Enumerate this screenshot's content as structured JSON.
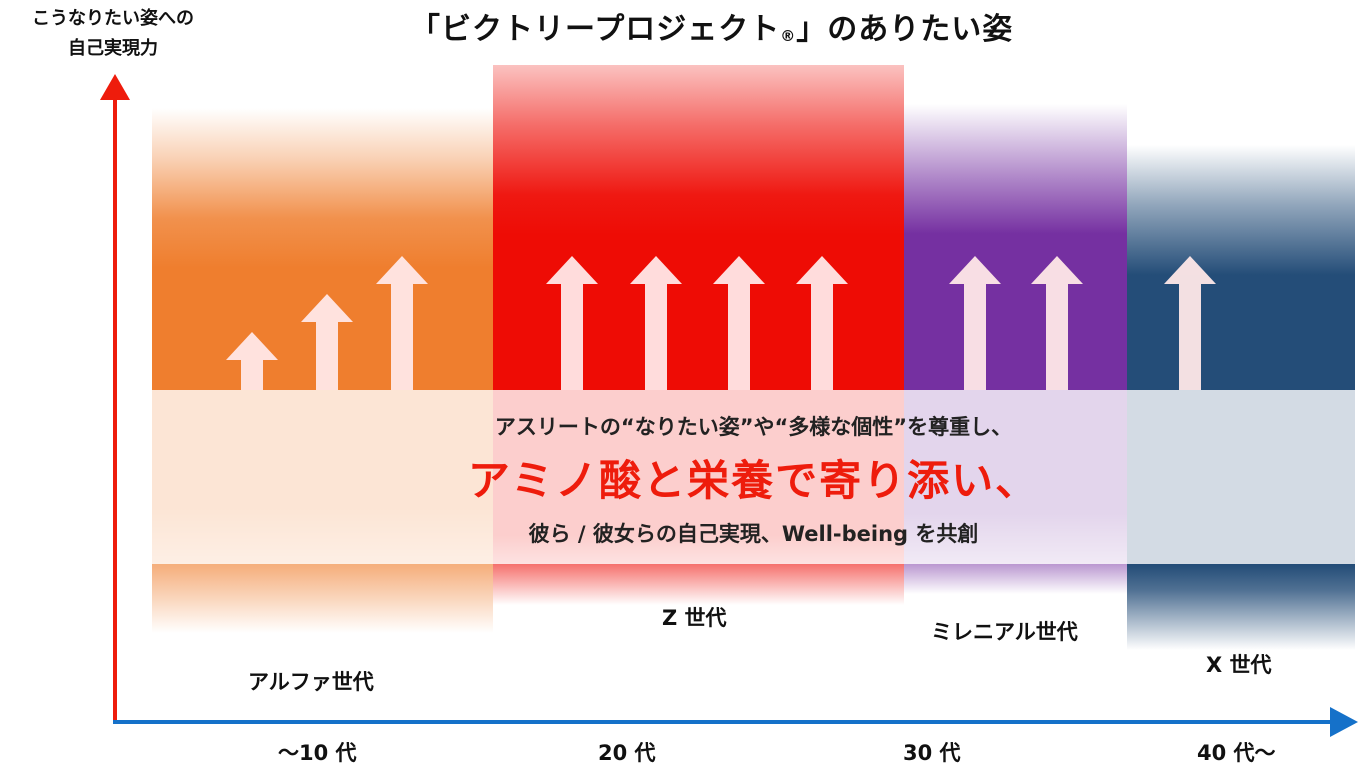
{
  "title": {
    "main": "「ビクトリープロジェクト",
    "registered": "®",
    "tail": "」のありたい姿"
  },
  "y_axis": {
    "label_line1": "こうなりたい姿への",
    "label_line2": "自己実現力",
    "color": "#ee1c0c"
  },
  "x_axis": {
    "color": "#1571c9",
    "ticks": [
      "～10 代",
      "20 代",
      "30 代",
      "40 代～"
    ]
  },
  "generations": [
    {
      "name": "アルファ世代",
      "color": "#ef7e2e",
      "arrows": 3
    },
    {
      "name": "Z 世代",
      "color": "#ee0c05",
      "arrows": 4
    },
    {
      "name": "ミレニアル世代",
      "color": "#7530a1",
      "arrows": 2
    },
    {
      "name": "X 世代",
      "color": "#244d78",
      "arrows": 1
    }
  ],
  "message": {
    "line1": "アスリートの“なりたい姿”や“多様な個性”を尊重し、",
    "line2": "アミノ酸と栄養で寄り添い、",
    "line3": "彼ら / 彼女らの自己実現、Well-being を共創"
  }
}
